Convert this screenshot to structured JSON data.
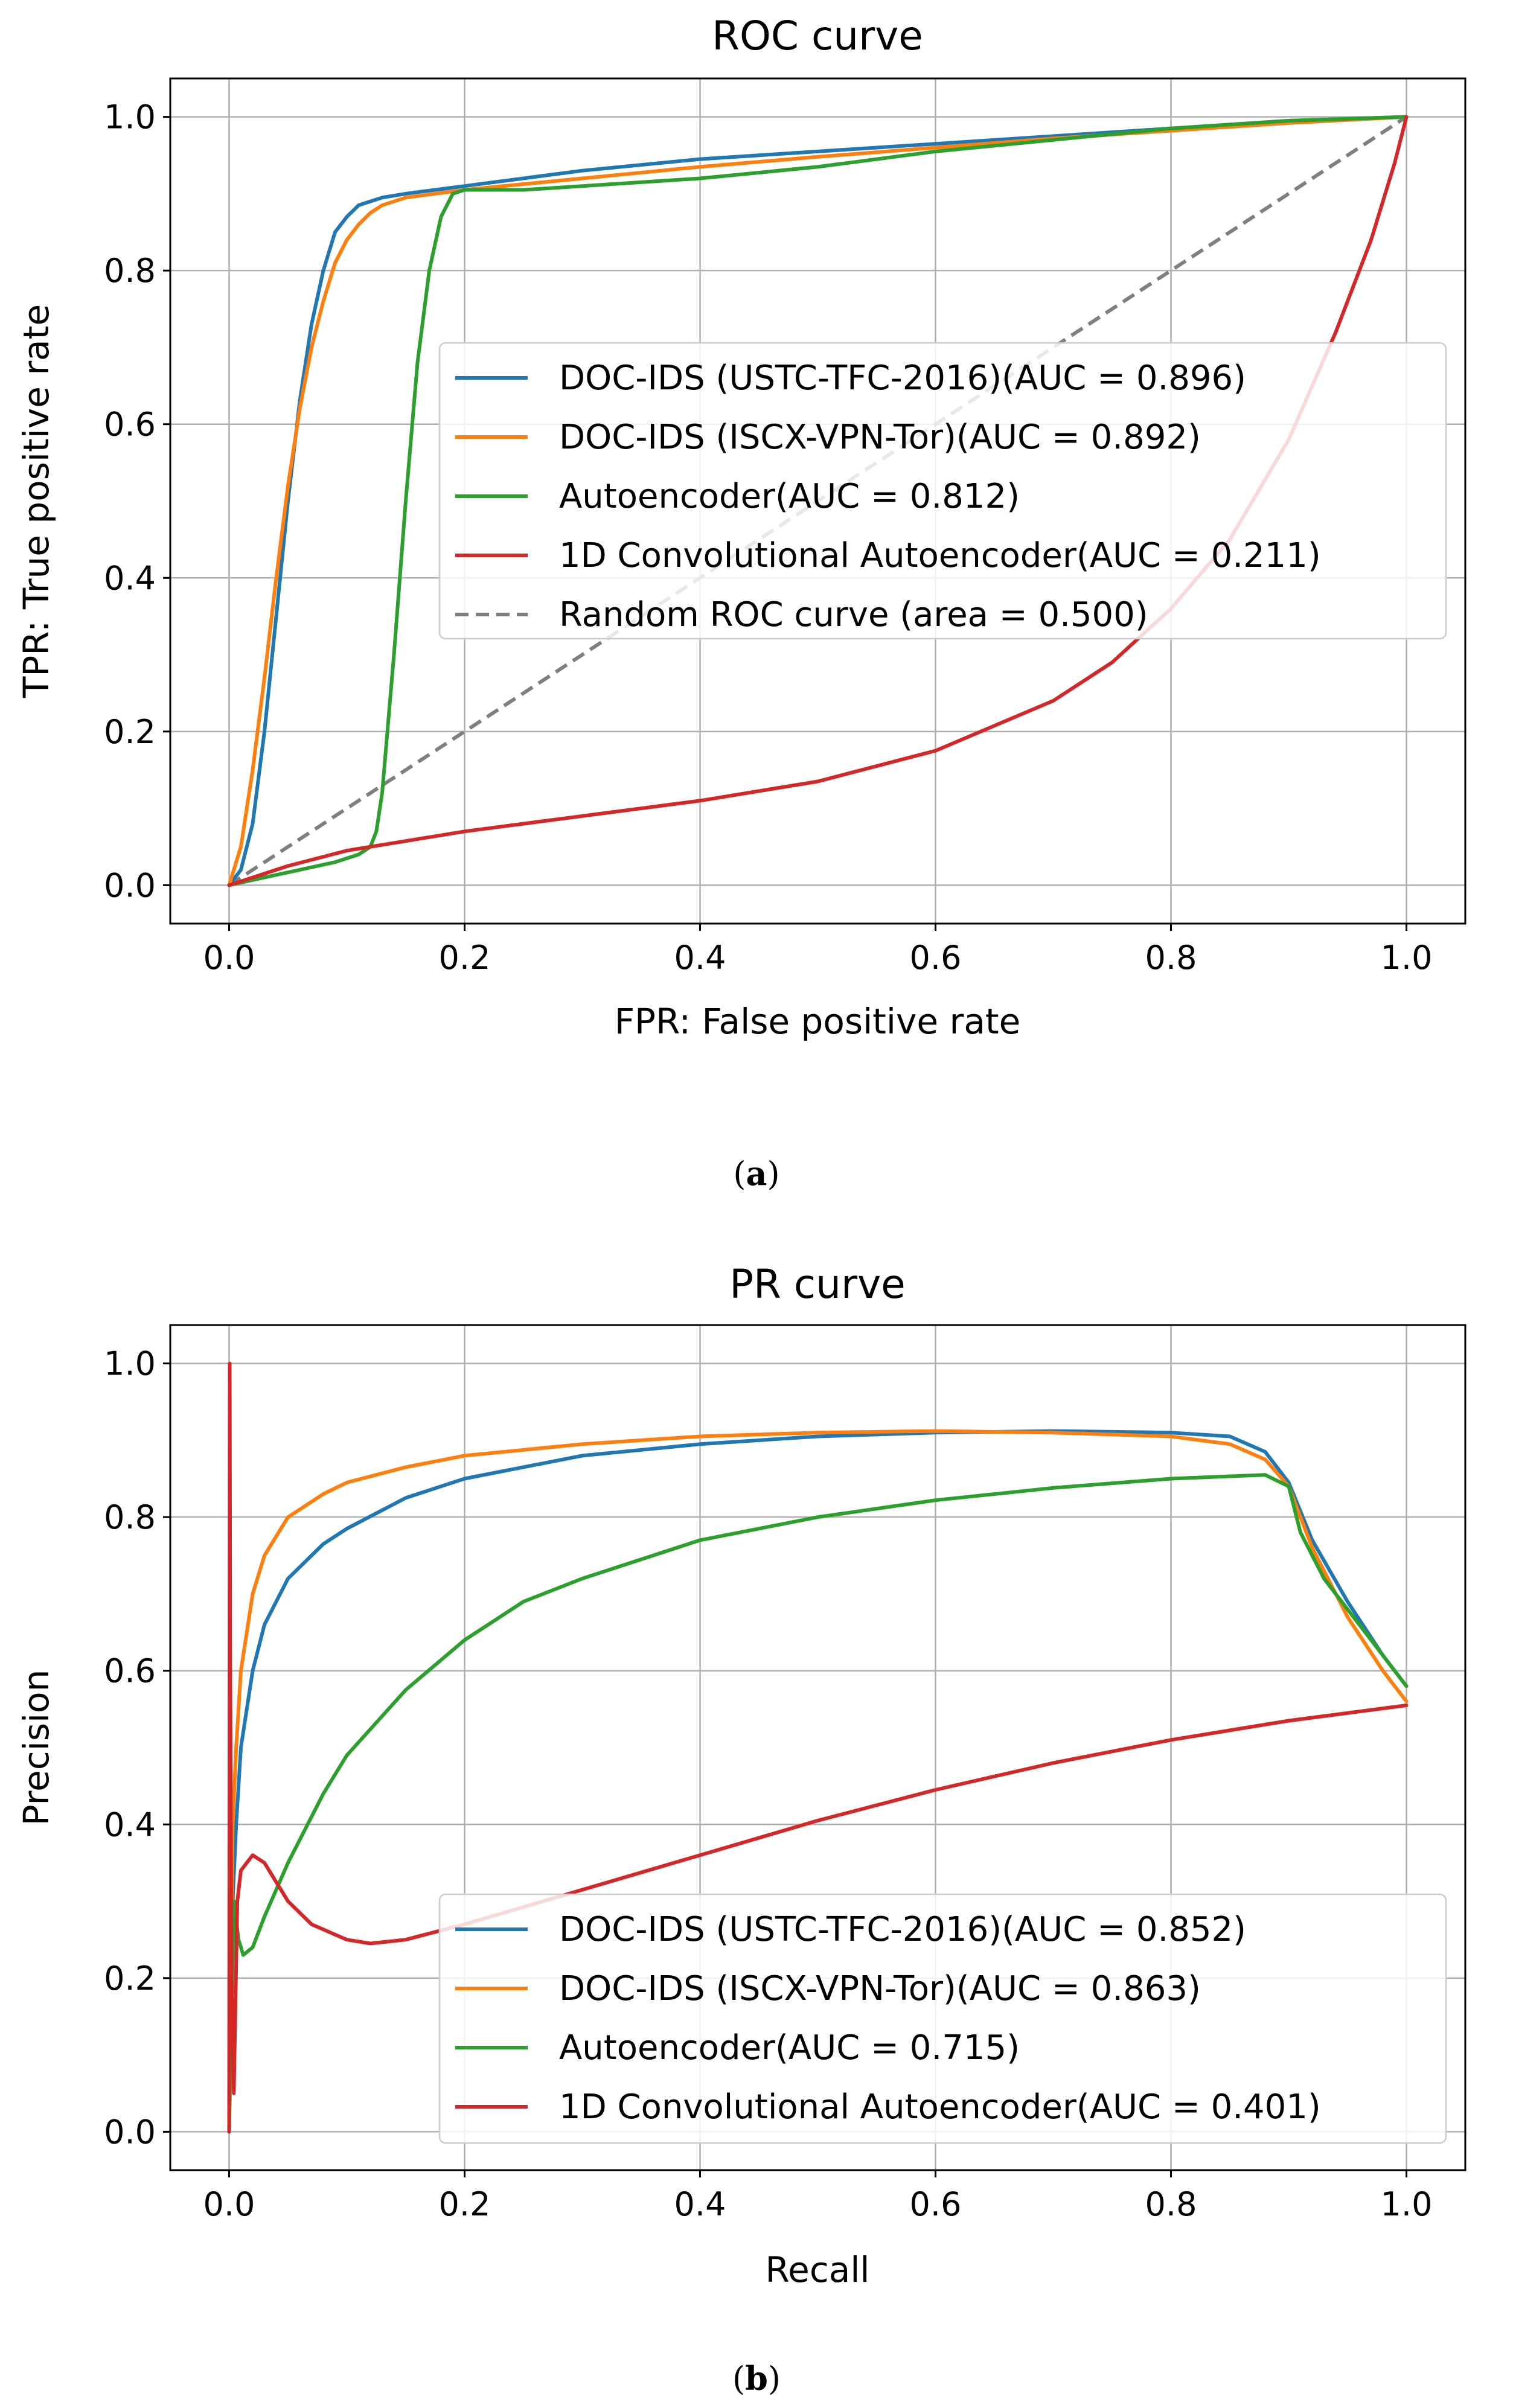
{
  "colors": {
    "blue": "#1f77b4",
    "orange": "#ff7f0e",
    "green": "#2ca02c",
    "red": "#d62728",
    "gray": "#7f7f7f",
    "grid": "#b0b0b0"
  },
  "captions": {
    "a": "a",
    "b": "b"
  },
  "chart_data": [
    {
      "id": "roc",
      "type": "line",
      "title": "ROC curve",
      "xlabel": "FPR: False positive rate",
      "ylabel": "TPR: True positive rate",
      "xlim": [
        -0.05,
        1.05
      ],
      "ylim": [
        -0.05,
        1.05
      ],
      "xticks": [
        0.0,
        0.2,
        0.4,
        0.6,
        0.8,
        1.0
      ],
      "yticks": [
        0.0,
        0.2,
        0.4,
        0.6,
        0.8,
        1.0
      ],
      "xtick_labels": [
        "0.0",
        "0.2",
        "0.4",
        "0.6",
        "0.8",
        "1.0"
      ],
      "ytick_labels": [
        "0.0",
        "0.2",
        "0.4",
        "0.6",
        "0.8",
        "1.0"
      ],
      "grid": true,
      "legend_position": "center-right",
      "series": [
        {
          "name": "DOC-IDS (USTC-TFC-2016)(AUC = 0.896)",
          "color": "blue",
          "dashed": false,
          "x": [
            0,
            0.01,
            0.02,
            0.03,
            0.04,
            0.05,
            0.06,
            0.07,
            0.08,
            0.09,
            0.1,
            0.11,
            0.12,
            0.13,
            0.15,
            0.2,
            0.3,
            0.4,
            0.5,
            0.6,
            0.7,
            0.8,
            0.9,
            1.0
          ],
          "y": [
            0,
            0.02,
            0.08,
            0.2,
            0.35,
            0.5,
            0.63,
            0.73,
            0.8,
            0.85,
            0.87,
            0.885,
            0.89,
            0.895,
            0.9,
            0.91,
            0.93,
            0.945,
            0.955,
            0.965,
            0.975,
            0.985,
            0.995,
            1.0
          ]
        },
        {
          "name": "DOC-IDS (ISCX-VPN-Tor)(AUC = 0.892)",
          "color": "orange",
          "dashed": false,
          "x": [
            0,
            0.01,
            0.02,
            0.03,
            0.04,
            0.05,
            0.06,
            0.07,
            0.08,
            0.09,
            0.1,
            0.11,
            0.12,
            0.13,
            0.15,
            0.2,
            0.3,
            0.4,
            0.5,
            0.6,
            0.7,
            0.8,
            0.9,
            1.0
          ],
          "y": [
            0,
            0.05,
            0.15,
            0.27,
            0.4,
            0.52,
            0.62,
            0.7,
            0.76,
            0.81,
            0.84,
            0.86,
            0.875,
            0.885,
            0.895,
            0.905,
            0.92,
            0.935,
            0.948,
            0.96,
            0.972,
            0.982,
            0.992,
            1.0
          ]
        },
        {
          "name": "Autoencoder(AUC = 0.812)",
          "color": "green",
          "dashed": false,
          "x": [
            0,
            0.03,
            0.06,
            0.09,
            0.11,
            0.12,
            0.125,
            0.13,
            0.14,
            0.15,
            0.16,
            0.17,
            0.18,
            0.19,
            0.2,
            0.25,
            0.3,
            0.4,
            0.5,
            0.6,
            0.7,
            0.8,
            0.9,
            1.0
          ],
          "y": [
            0,
            0.01,
            0.02,
            0.03,
            0.04,
            0.05,
            0.07,
            0.12,
            0.3,
            0.5,
            0.68,
            0.8,
            0.87,
            0.9,
            0.905,
            0.905,
            0.91,
            0.92,
            0.935,
            0.955,
            0.97,
            0.985,
            0.995,
            1.0
          ]
        },
        {
          "name": "1D Convolutional Autoencoder(AUC = 0.211)",
          "color": "red",
          "dashed": false,
          "x": [
            0,
            0.05,
            0.1,
            0.2,
            0.3,
            0.4,
            0.5,
            0.6,
            0.7,
            0.75,
            0.8,
            0.85,
            0.9,
            0.94,
            0.97,
            0.99,
            1.0
          ],
          "y": [
            0,
            0.025,
            0.045,
            0.07,
            0.09,
            0.11,
            0.135,
            0.175,
            0.24,
            0.29,
            0.36,
            0.45,
            0.58,
            0.72,
            0.84,
            0.94,
            1.0
          ]
        },
        {
          "name": "Random ROC curve (area = 0.500)",
          "color": "gray",
          "dashed": true,
          "x": [
            0,
            1
          ],
          "y": [
            0,
            1
          ]
        }
      ]
    },
    {
      "id": "pr",
      "type": "line",
      "title": "PR curve",
      "xlabel": "Recall",
      "ylabel": "Precision",
      "xlim": [
        -0.05,
        1.05
      ],
      "ylim": [
        -0.05,
        1.05
      ],
      "xticks": [
        0.0,
        0.2,
        0.4,
        0.6,
        0.8,
        1.0
      ],
      "yticks": [
        0.0,
        0.2,
        0.4,
        0.6,
        0.8,
        1.0
      ],
      "xtick_labels": [
        "0.0",
        "0.2",
        "0.4",
        "0.6",
        "0.8",
        "1.0"
      ],
      "ytick_labels": [
        "0.0",
        "0.2",
        "0.4",
        "0.6",
        "0.8",
        "1.0"
      ],
      "grid": true,
      "legend_position": "lower-right",
      "series": [
        {
          "name": "DOC-IDS (USTC-TFC-2016)(AUC = 0.852)",
          "color": "blue",
          "dashed": false,
          "x": [
            0,
            0.003,
            0.006,
            0.01,
            0.02,
            0.03,
            0.05,
            0.08,
            0.1,
            0.15,
            0.2,
            0.3,
            0.4,
            0.5,
            0.6,
            0.7,
            0.8,
            0.85,
            0.88,
            0.9,
            0.92,
            0.95,
            0.98,
            1.0
          ],
          "y": [
            0,
            0.3,
            0.4,
            0.5,
            0.6,
            0.66,
            0.72,
            0.765,
            0.785,
            0.825,
            0.85,
            0.88,
            0.895,
            0.905,
            0.91,
            0.912,
            0.91,
            0.905,
            0.885,
            0.845,
            0.77,
            0.69,
            0.62,
            0.58
          ]
        },
        {
          "name": "DOC-IDS (ISCX-VPN-Tor)(AUC = 0.863)",
          "color": "orange",
          "dashed": false,
          "x": [
            0,
            0.003,
            0.006,
            0.01,
            0.02,
            0.03,
            0.05,
            0.08,
            0.1,
            0.15,
            0.2,
            0.3,
            0.4,
            0.5,
            0.6,
            0.7,
            0.8,
            0.85,
            0.88,
            0.9,
            0.92,
            0.95,
            0.98,
            1.0
          ],
          "y": [
            0,
            0.4,
            0.5,
            0.6,
            0.7,
            0.75,
            0.8,
            0.83,
            0.845,
            0.865,
            0.88,
            0.895,
            0.905,
            0.91,
            0.912,
            0.91,
            0.905,
            0.895,
            0.875,
            0.84,
            0.76,
            0.67,
            0.6,
            0.56
          ]
        },
        {
          "name": "Autoencoder(AUC = 0.715)",
          "color": "green",
          "dashed": false,
          "x": [
            0,
            0.004,
            0.008,
            0.012,
            0.02,
            0.03,
            0.05,
            0.08,
            0.1,
            0.15,
            0.2,
            0.25,
            0.3,
            0.4,
            0.5,
            0.6,
            0.7,
            0.8,
            0.88,
            0.9,
            0.91,
            0.93,
            0.96,
            1.0
          ],
          "y": [
            0,
            0.3,
            0.25,
            0.23,
            0.24,
            0.28,
            0.35,
            0.44,
            0.49,
            0.575,
            0.64,
            0.69,
            0.72,
            0.77,
            0.8,
            0.822,
            0.838,
            0.85,
            0.855,
            0.84,
            0.78,
            0.72,
            0.66,
            0.58
          ]
        },
        {
          "name": "1D Convolutional Autoencoder(AUC = 0.401)",
          "color": "red",
          "dashed": false,
          "x": [
            0,
            0.0005,
            0.001,
            0.002,
            0.004,
            0.007,
            0.01,
            0.02,
            0.03,
            0.05,
            0.07,
            0.1,
            0.12,
            0.15,
            0.2,
            0.3,
            0.4,
            0.5,
            0.6,
            0.7,
            0.8,
            0.9,
            1.0
          ],
          "y": [
            0,
            1.0,
            0.6,
            0.2,
            0.05,
            0.3,
            0.34,
            0.36,
            0.35,
            0.3,
            0.27,
            0.25,
            0.245,
            0.25,
            0.27,
            0.315,
            0.36,
            0.405,
            0.445,
            0.48,
            0.51,
            0.535,
            0.555
          ]
        }
      ]
    }
  ]
}
